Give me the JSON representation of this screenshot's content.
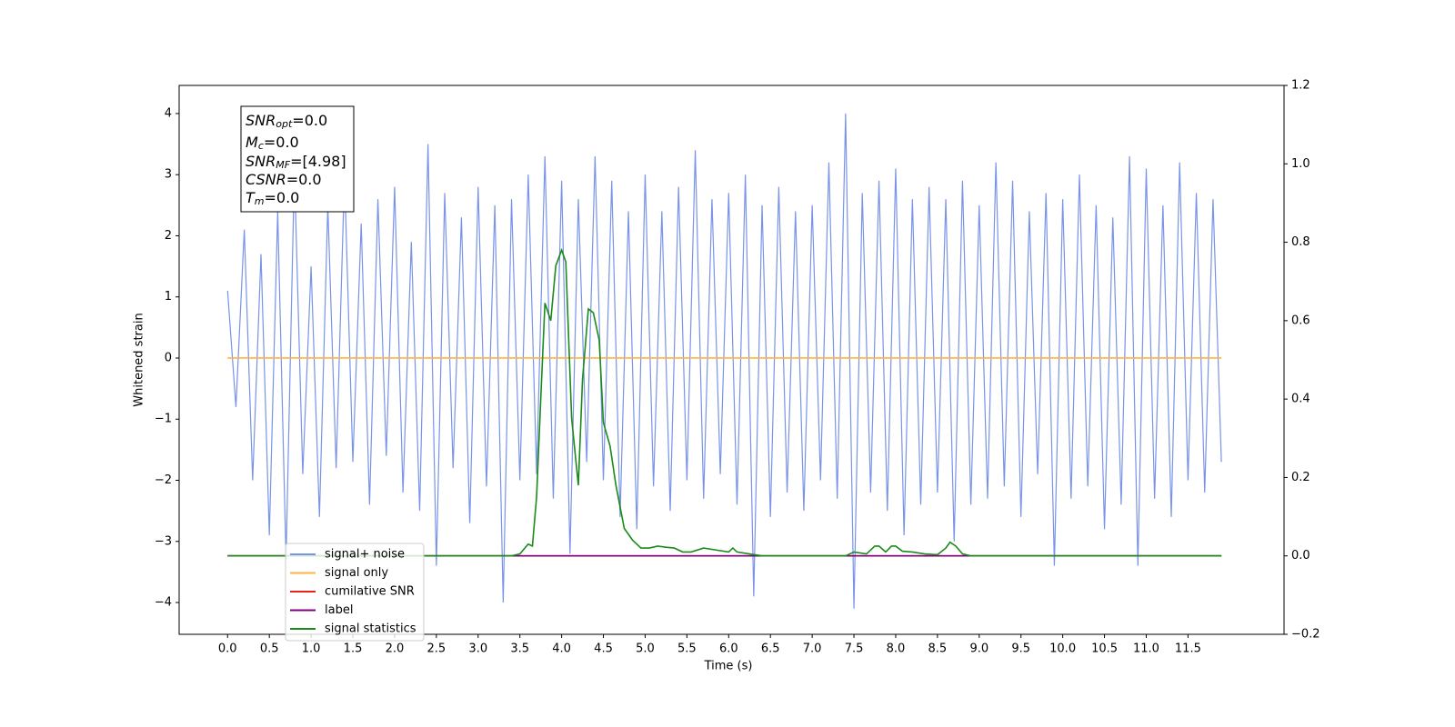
{
  "chart_data": {
    "type": "line",
    "xlabel": "Time (s)",
    "ylabel": "Whitened strain",
    "xlim": [
      -0.58,
      12.65
    ],
    "ylim": [
      -4.52,
      4.46
    ],
    "y2lim": [
      -0.2,
      1.2
    ],
    "xticks": [
      {
        "value": 0,
        "label": "0.0"
      },
      {
        "value": 0.5,
        "label": "0.5"
      },
      {
        "value": 1,
        "label": "1.0"
      },
      {
        "value": 1.5,
        "label": "1.5"
      },
      {
        "value": 2,
        "label": "2.0"
      },
      {
        "value": 2.5,
        "label": "2.5"
      },
      {
        "value": 3,
        "label": "3.0"
      },
      {
        "value": 3.5,
        "label": "3.5"
      },
      {
        "value": 4,
        "label": "4.0"
      },
      {
        "value": 4.5,
        "label": "4.5"
      },
      {
        "value": 5,
        "label": "5.0"
      },
      {
        "value": 5.5,
        "label": "5.5"
      },
      {
        "value": 6,
        "label": "6.0"
      },
      {
        "value": 6.5,
        "label": "6.5"
      },
      {
        "value": 7,
        "label": "7.0"
      },
      {
        "value": 7.5,
        "label": "7.5"
      },
      {
        "value": 8,
        "label": "8.0"
      },
      {
        "value": 8.5,
        "label": "8.5"
      },
      {
        "value": 9,
        "label": "9.0"
      },
      {
        "value": 9.5,
        "label": "9.5"
      },
      {
        "value": 10,
        "label": "10.0"
      },
      {
        "value": 10.5,
        "label": "10.5"
      },
      {
        "value": 11,
        "label": "11.0"
      },
      {
        "value": 11.5,
        "label": "11.5"
      }
    ],
    "yticks": [
      {
        "value": -4,
        "label": "−4"
      },
      {
        "value": -3,
        "label": "−3"
      },
      {
        "value": -2,
        "label": "−2"
      },
      {
        "value": -1,
        "label": "−1"
      },
      0,
      1,
      2,
      3,
      4
    ],
    "y2ticks": [
      {
        "value": -0.2,
        "label": "−0.2"
      },
      {
        "value": 0,
        "label": "0.0"
      },
      {
        "value": 0.2,
        "label": "0.2"
      },
      {
        "value": 0.4,
        "label": "0.4"
      },
      {
        "value": 0.6,
        "label": "0.6"
      },
      {
        "value": 0.8,
        "label": "0.8"
      },
      {
        "value": 1,
        "label": "1.0"
      },
      {
        "value": 1.2,
        "label": "1.2"
      }
    ],
    "legend": "lower left",
    "annotations": [
      {
        "name": "SNR",
        "sub": "opt",
        "text": "=0.0"
      },
      {
        "name": "M",
        "sub": "c",
        "text": "=0.0"
      },
      {
        "name": "SNR",
        "sub": "MF",
        "text": "=[4.98]"
      },
      {
        "name": "CSNR",
        "sub": null,
        "text": "=0.0"
      },
      {
        "name": "T",
        "sub": "m",
        "text": "=0.0"
      }
    ],
    "series": [
      {
        "name": "signal+ noise",
        "color": "#7893e8",
        "axis": "y",
        "x": [
          0,
          0.1,
          0.2,
          0.3,
          0.4,
          0.5,
          0.6,
          0.7,
          0.8,
          0.9,
          1,
          1.1,
          1.2,
          1.3,
          1.4,
          1.5,
          1.6,
          1.7,
          1.8,
          1.9,
          2,
          2.1,
          2.2,
          2.3,
          2.4,
          2.5,
          2.6,
          2.7,
          2.8,
          2.9,
          3,
          3.1,
          3.2,
          3.3,
          3.4,
          3.5,
          3.6,
          3.7,
          3.8,
          3.9,
          4,
          4.1,
          4.2,
          4.3,
          4.4,
          4.5,
          4.6,
          4.7,
          4.8,
          4.9,
          5,
          5.1,
          5.2,
          5.3,
          5.4,
          5.5,
          5.6,
          5.7,
          5.8,
          5.9,
          6,
          6.1,
          6.2,
          6.3,
          6.4,
          6.5,
          6.6,
          6.7,
          6.8,
          6.9,
          7,
          7.1,
          7.2,
          7.3,
          7.4,
          7.5,
          7.6,
          7.7,
          7.8,
          7.9,
          8,
          8.1,
          8.2,
          8.3,
          8.4,
          8.5,
          8.6,
          8.7,
          8.8,
          8.9,
          9,
          9.1,
          9.2,
          9.3,
          9.4,
          9.5,
          9.6,
          9.7,
          9.8,
          9.9,
          10,
          10.1,
          10.2,
          10.3,
          10.4,
          10.5,
          10.6,
          10.7,
          10.8,
          10.9,
          11,
          11.1,
          11.2,
          11.3,
          11.4,
          11.5,
          11.6,
          11.7,
          11.8,
          11.9
        ],
        "values": [
          1.1,
          -0.8,
          2.1,
          -2.0,
          1.7,
          -2.9,
          2.4,
          -3.3,
          3.1,
          -1.9,
          1.5,
          -2.6,
          2.5,
          -1.8,
          3.0,
          -1.7,
          2.2,
          -2.4,
          2.6,
          -1.6,
          2.8,
          -2.2,
          1.9,
          -2.5,
          3.5,
          -3.4,
          2.7,
          -1.8,
          2.3,
          -2.7,
          2.8,
          -2.1,
          2.5,
          -4.0,
          2.6,
          -2.0,
          3.0,
          -1.9,
          3.3,
          -2.3,
          2.9,
          -3.2,
          2.6,
          -1.7,
          3.3,
          -2.0,
          2.9,
          -2.6,
          2.4,
          -2.8,
          3.0,
          -2.1,
          2.4,
          -2.5,
          2.8,
          -2.0,
          3.4,
          -2.3,
          2.6,
          -1.9,
          2.7,
          -2.4,
          3.0,
          -3.9,
          2.5,
          -2.6,
          2.8,
          -2.2,
          2.4,
          -2.5,
          2.5,
          -2.0,
          3.2,
          -2.3,
          4.0,
          -4.1,
          2.7,
          -2.2,
          2.9,
          -2.5,
          3.1,
          -2.9,
          2.6,
          -2.4,
          2.8,
          -2.2,
          2.6,
          -3.0,
          2.9,
          -2.4,
          2.5,
          -2.3,
          3.2,
          -2.1,
          2.9,
          -2.6,
          2.4,
          -1.9,
          2.7,
          -3.4,
          2.6,
          -2.3,
          3.0,
          -2.1,
          2.5,
          -2.8,
          2.3,
          -2.4,
          3.3,
          -3.4,
          3.1,
          -2.3,
          2.5,
          -2.6,
          3.2,
          -2.0,
          2.7,
          -2.2,
          2.6,
          -1.7
        ]
      },
      {
        "name": "signal only",
        "color": "#ffb347",
        "axis": "y",
        "x": [
          0,
          11.9
        ],
        "values": [
          0,
          0
        ]
      },
      {
        "name": "cumilative SNR",
        "color": "#e8211c",
        "axis": "y2",
        "x": [
          0,
          11.9
        ],
        "values": [
          0,
          0
        ]
      },
      {
        "name": "label",
        "color": "#800080",
        "axis": "y2",
        "x": [
          0,
          11.9
        ],
        "values": [
          0,
          0
        ]
      },
      {
        "name": "signal statistics",
        "color": "#1a8a1a",
        "axis": "y2",
        "x": [
          0,
          3.4,
          3.5,
          3.6,
          3.65,
          3.7,
          3.75,
          3.8,
          3.87,
          3.93,
          4.0,
          4.05,
          4.12,
          4.2,
          4.25,
          4.32,
          4.38,
          4.45,
          4.5,
          4.58,
          4.65,
          4.75,
          4.85,
          4.95,
          5.05,
          5.15,
          5.25,
          5.35,
          5.45,
          5.55,
          5.7,
          5.85,
          6.0,
          6.05,
          6.1,
          6.25,
          6.4,
          7.4,
          7.5,
          7.65,
          7.75,
          7.8,
          7.88,
          7.95,
          8.0,
          8.08,
          8.2,
          8.35,
          8.5,
          8.6,
          8.65,
          8.72,
          8.8,
          8.9,
          11.9
        ],
        "values": [
          0,
          0,
          0.005,
          0.03,
          0.025,
          0.15,
          0.4,
          0.645,
          0.6,
          0.74,
          0.78,
          0.75,
          0.35,
          0.18,
          0.45,
          0.63,
          0.62,
          0.55,
          0.34,
          0.28,
          0.18,
          0.07,
          0.04,
          0.02,
          0.02,
          0.025,
          0.022,
          0.02,
          0.01,
          0.01,
          0.02,
          0.015,
          0.01,
          0.02,
          0.01,
          0.005,
          0,
          0,
          0.01,
          0.005,
          0.025,
          0.025,
          0.01,
          0.025,
          0.025,
          0.012,
          0.01,
          0.005,
          0.003,
          0.02,
          0.035,
          0.025,
          0.005,
          0,
          0
        ]
      }
    ]
  }
}
